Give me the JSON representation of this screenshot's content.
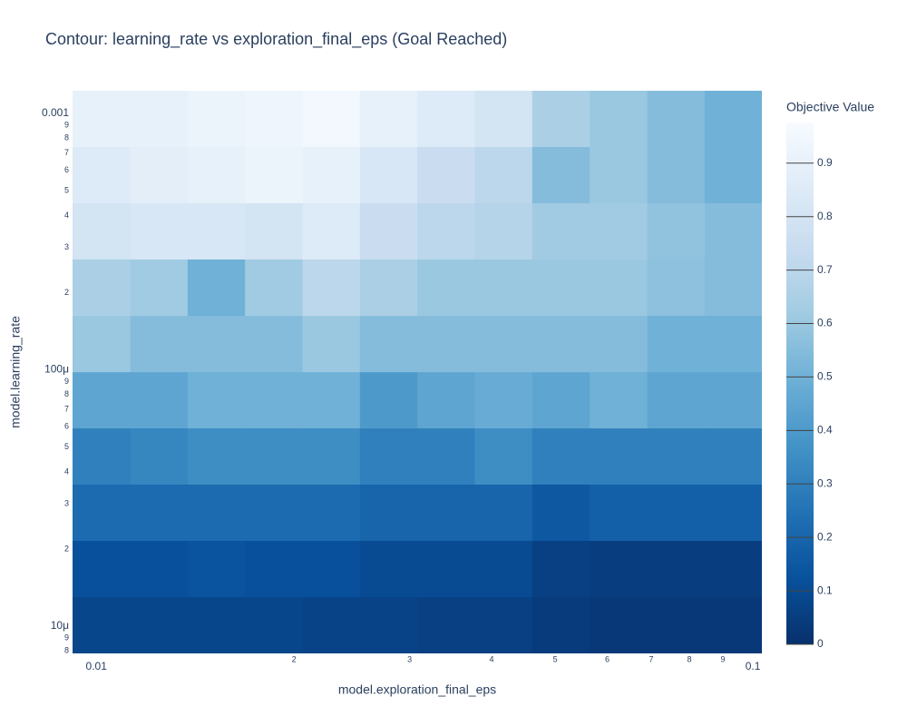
{
  "chart_data": {
    "type": "contour",
    "title": "Contour: learning_rate vs exploration_final_eps (Goal Reached)",
    "xlabel": "model.exploration_final_eps",
    "ylabel": "model.learning_rate",
    "colorbar_title": "Objective Value",
    "xscale": "log",
    "yscale": "log",
    "xlim": [
      0.0092,
      0.1032
    ],
    "ylim": [
      7.83e-06,
      0.001226
    ],
    "zlim": [
      0,
      0.976
    ],
    "xticks": [
      0.01,
      {
        "value": 0.02,
        "label": "2"
      },
      {
        "value": 0.03,
        "label": "3"
      },
      {
        "value": 0.04,
        "label": "4"
      },
      {
        "value": 0.05,
        "label": "5"
      },
      {
        "value": 0.06,
        "label": "6"
      },
      {
        "value": 0.07,
        "label": "7"
      },
      {
        "value": 0.08,
        "label": "8"
      },
      {
        "value": 0.09,
        "label": "9"
      },
      0.1
    ],
    "yticks": [
      0.001,
      {
        "value": 0.0009,
        "label": "9"
      },
      {
        "value": 0.0008,
        "label": "8"
      },
      {
        "value": 0.0007,
        "label": "7"
      },
      {
        "value": 0.0006,
        "label": "6"
      },
      {
        "value": 0.0005,
        "label": "5"
      },
      {
        "value": 0.0004,
        "label": "4"
      },
      {
        "value": 0.0003,
        "label": "3"
      },
      {
        "value": 0.0002,
        "label": "2"
      },
      {
        "value": 0.0001,
        "label": "100μ"
      },
      {
        "value": 9e-05,
        "label": "9"
      },
      {
        "value": 8e-05,
        "label": "8"
      },
      {
        "value": 7e-05,
        "label": "7"
      },
      {
        "value": 6e-05,
        "label": "6"
      },
      {
        "value": 5e-05,
        "label": "5"
      },
      {
        "value": 4e-05,
        "label": "4"
      },
      {
        "value": 3e-05,
        "label": "3"
      },
      {
        "value": 2e-05,
        "label": "2"
      },
      {
        "value": 1e-05,
        "label": "10μ"
      },
      {
        "value": 9e-06,
        "label": "9"
      },
      {
        "value": 8e-06,
        "label": "8"
      }
    ],
    "zticks": [
      0,
      0.1,
      0.2,
      0.3,
      0.4,
      0.5,
      0.6,
      0.7,
      0.8,
      0.9
    ],
    "colorscale": [
      [
        0,
        "#08306b"
      ],
      [
        0.125,
        "#08519c"
      ],
      [
        0.25,
        "#2171b5"
      ],
      [
        0.375,
        "#4292c6"
      ],
      [
        0.5,
        "#6baed6"
      ],
      [
        0.625,
        "#9ecae1"
      ],
      [
        0.75,
        "#c6dbef"
      ],
      [
        0.875,
        "#deebf7"
      ],
      [
        1,
        "#f7fbff"
      ]
    ],
    "x": [
      0.0102,
      0.01245,
      0.01524,
      0.01862,
      0.0228,
      0.02786,
      0.0341,
      0.0417,
      0.051,
      0.0624,
      0.0764,
      0.0933
    ],
    "y": [
      0.000953,
      0.000574,
      0.000347,
      0.000209,
      0.000126,
      7.6e-05,
      4.59e-05,
      2.77e-05,
      1.67e-05,
      1.007e-05
    ],
    "z": [
      [
        0.9,
        0.9,
        0.92,
        0.93,
        0.95,
        0.9,
        0.85,
        0.8,
        0.65,
        0.6,
        0.55,
        0.5
      ],
      [
        0.85,
        0.88,
        0.9,
        0.92,
        0.9,
        0.82,
        0.75,
        0.7,
        0.55,
        0.6,
        0.55,
        0.5
      ],
      [
        0.8,
        0.82,
        0.82,
        0.8,
        0.85,
        0.75,
        0.7,
        0.68,
        0.62,
        0.62,
        0.58,
        0.55
      ],
      [
        0.65,
        0.62,
        0.5,
        0.62,
        0.7,
        0.65,
        0.6,
        0.6,
        0.6,
        0.6,
        0.57,
        0.55
      ],
      [
        0.6,
        0.55,
        0.55,
        0.55,
        0.6,
        0.55,
        0.55,
        0.55,
        0.55,
        0.55,
        0.5,
        0.5
      ],
      [
        0.45,
        0.45,
        0.5,
        0.5,
        0.5,
        0.4,
        0.45,
        0.48,
        0.45,
        0.5,
        0.45,
        0.45
      ],
      [
        0.3,
        0.32,
        0.35,
        0.35,
        0.35,
        0.3,
        0.3,
        0.35,
        0.3,
        0.3,
        0.3,
        0.3
      ],
      [
        0.22,
        0.22,
        0.22,
        0.22,
        0.22,
        0.2,
        0.2,
        0.2,
        0.15,
        0.18,
        0.18,
        0.18
      ],
      [
        0.12,
        0.12,
        0.13,
        0.12,
        0.12,
        0.1,
        0.1,
        0.1,
        0.06,
        0.05,
        0.05,
        0.05
      ],
      [
        0.08,
        0.08,
        0.08,
        0.08,
        0.07,
        0.07,
        0.06,
        0.06,
        0.04,
        0.03,
        0.03,
        0.03
      ]
    ]
  }
}
